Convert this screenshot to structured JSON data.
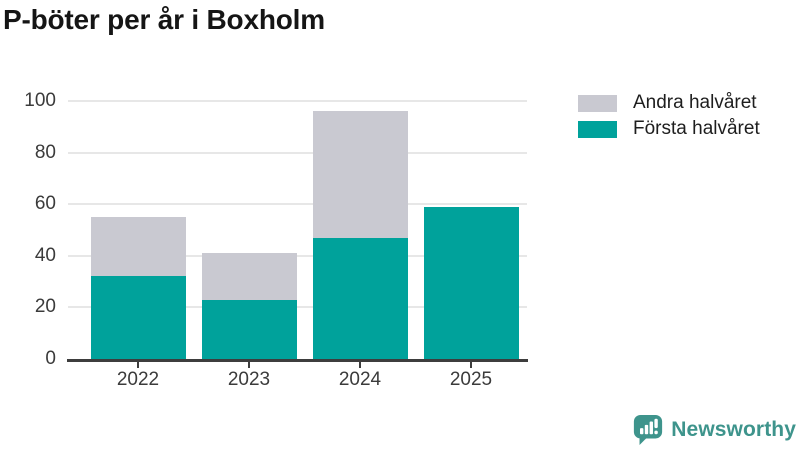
{
  "footer": {
    "brand": "Newsworthy"
  },
  "colors": {
    "first_half": "#00a29b",
    "second_half": "#c9c9d1",
    "grid": "#e7e7e7",
    "axis": "#3d3d3d",
    "logo": "#3e948c"
  },
  "legend": [
    {
      "label": "Andra halvåret",
      "color": "#c9c9d1"
    },
    {
      "label": "Första halvåret",
      "color": "#00a29b"
    }
  ],
  "chart_data": {
    "type": "bar",
    "stacked": true,
    "title": "P-böter per år i Boxholm",
    "categories": [
      "2022",
      "2023",
      "2024",
      "2025"
    ],
    "series": [
      {
        "name": "Första halvåret",
        "color": "#00a29b",
        "values": [
          32,
          23,
          47,
          59
        ]
      },
      {
        "name": "Andra halvåret",
        "color": "#c9c9d1",
        "values": [
          23,
          18,
          49,
          0
        ]
      }
    ],
    "totals": [
      55,
      41,
      96,
      59
    ],
    "xlabel": "",
    "ylabel": "",
    "ylim": [
      0,
      100
    ],
    "yticks": [
      0,
      20,
      40,
      60,
      80,
      100
    ],
    "grid": true,
    "legend_position": "top-right"
  }
}
